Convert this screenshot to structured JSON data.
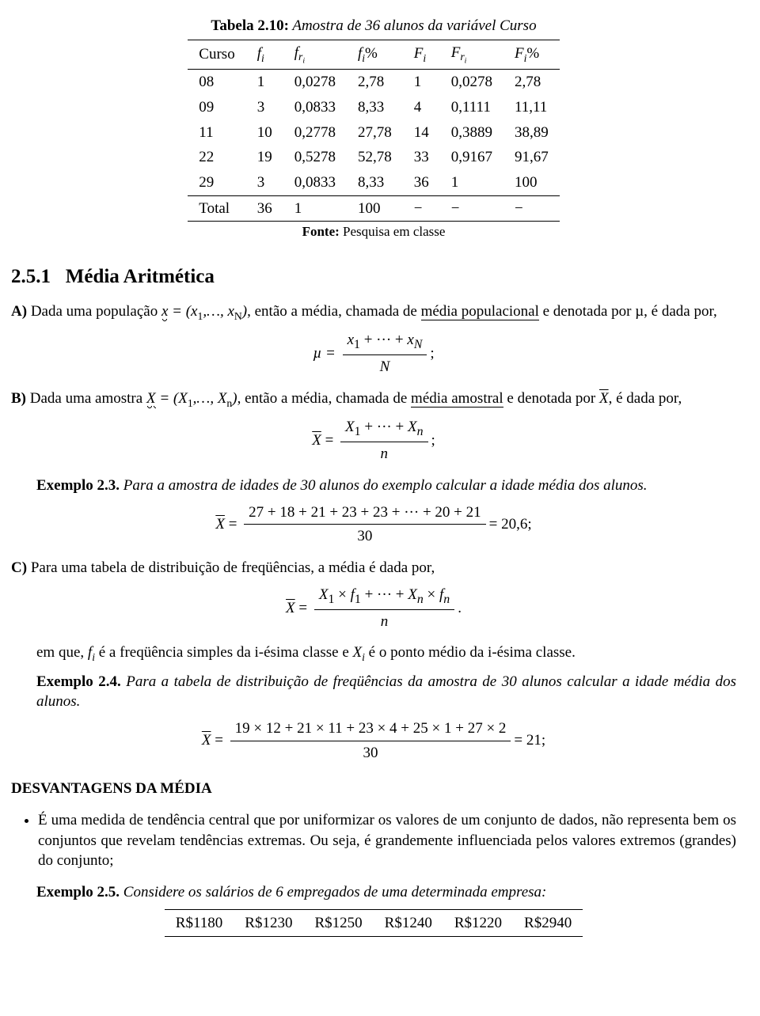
{
  "table": {
    "caption_bold": "Tabela 2.10:",
    "caption_italic": " Amostra de 36 alunos da variável Curso",
    "headers": [
      "Curso",
      "fᵢ",
      "f_{r_i}",
      "fᵢ%",
      "Fᵢ",
      "F_{r_i}",
      "Fᵢ%"
    ],
    "rows": [
      [
        "08",
        "1",
        "0,0278",
        "2,78",
        "1",
        "0,0278",
        "2,78"
      ],
      [
        "09",
        "3",
        "0,0833",
        "8,33",
        "4",
        "0,1111",
        "11,11"
      ],
      [
        "11",
        "10",
        "0,2778",
        "27,78",
        "14",
        "0,3889",
        "38,89"
      ],
      [
        "22",
        "19",
        "0,5278",
        "52,78",
        "33",
        "0,9167",
        "91,67"
      ],
      [
        "29",
        "3",
        "0,0833",
        "8,33",
        "36",
        "1",
        "100"
      ]
    ],
    "total_row": [
      "Total",
      "36",
      "1",
      "100",
      "−",
      "−",
      "−"
    ],
    "fonte_label": "Fonte:",
    "fonte_text": " Pesquisa em classe"
  },
  "section": {
    "num": "2.5.1",
    "title": "Média Aritmética"
  },
  "A": {
    "label": "A)",
    "pre": "Dada uma população ",
    "x_eq": "x = (x",
    "x_sub1": "1",
    "x_mid": ",…, x",
    "x_subN": "N",
    "x_close": ")",
    "mid": ", então a média, chamada de ",
    "underline": "média populacional",
    "post": " e denotada por µ, é dada por,",
    "formula_left": "µ =",
    "num": "x₁ + ··· + x_N",
    "den": "N",
    "semi": ";"
  },
  "B": {
    "label": "B)",
    "pre": "Dada uma amostra ",
    "X_eq": "X = (X",
    "X_sub1": "1",
    "X_mid": ",…, X",
    "X_subn": "n",
    "X_close": ")",
    "mid": ", então a média, chamada de ",
    "underline": "média amostral",
    "post": " e denotada por ",
    "xbar": "X",
    "post2": ", é dada por,",
    "formula_left": "X =",
    "num": "X₁ + ··· + Xₙ",
    "den": "n",
    "semi": ";"
  },
  "ex23": {
    "label": "Exemplo 2.3.",
    "text": "  Para a amostra de idades de 30 alunos do exemplo calcular a idade média dos alunos.",
    "formula_left": "X =",
    "num": "27 + 18 + 21 + 23 + 23 + ··· + 20 + 21",
    "den": "30",
    "result": " = 20,6;"
  },
  "C": {
    "label": "C)",
    "text": "Para uma tabela de distribuição de freqüências, a média é dada por,",
    "formula_left": "X =",
    "num": "X₁ × f₁ + ··· + Xₙ × fₙ",
    "den": "n",
    "dot": ".",
    "note": "em que, fᵢ é a freqüência simples da i-ésima classe e Xᵢ é o ponto médio da i-ésima classe."
  },
  "ex24": {
    "label": "Exemplo 2.4.",
    "text": "  Para a tabela de distribuição de freqüências da amostra de 30 alunos calcular a idade média dos alunos.",
    "formula_left": "X =",
    "num": "19 × 12 + 21 × 11 + 23 × 4 + 25 × 1 + 27 × 2",
    "den": "30",
    "result": " = 21;"
  },
  "desv": {
    "title": "DESVANTAGENS DA MÉDIA",
    "bullet": "É uma medida de tendência central que por uniformizar os valores de um conjunto de dados, não representa bem os conjuntos que revelam tendências extremas. Ou seja, é grandemente influenciada pelos valores extremos (grandes) do conjunto;"
  },
  "ex25": {
    "label": "Exemplo 2.5.",
    "text": "  Considere os salários de 6 empregados de uma determinada empresa:"
  },
  "salaries": [
    "R$1180",
    "R$1230",
    "R$1250",
    "R$1240",
    "R$1220",
    "R$2940"
  ]
}
